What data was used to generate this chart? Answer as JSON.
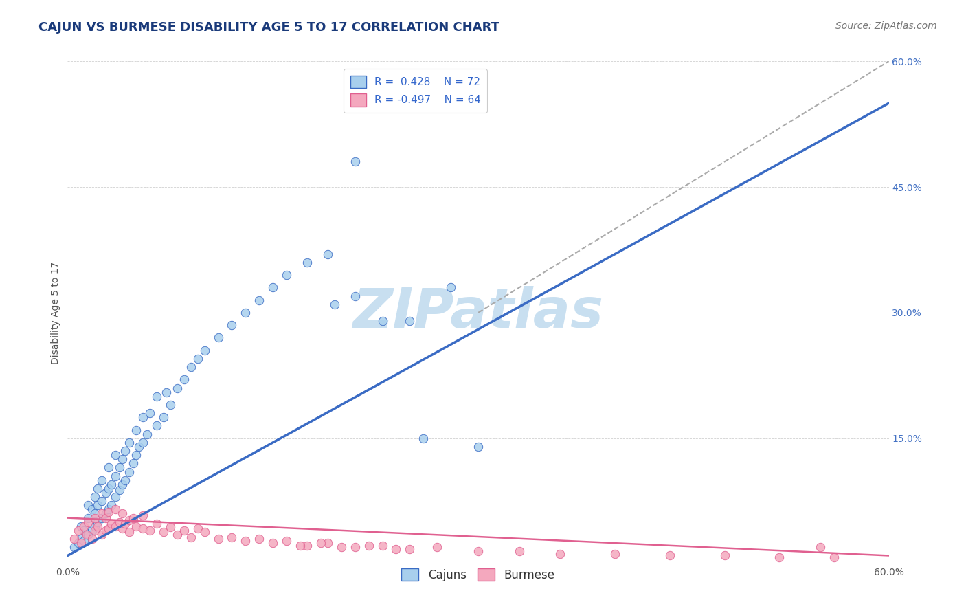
{
  "title": "CAJUN VS BURMESE DISABILITY AGE 5 TO 17 CORRELATION CHART",
  "source_text": "Source: ZipAtlas.com",
  "ylabel": "Disability Age 5 to 17",
  "xlim": [
    0.0,
    0.6
  ],
  "ylim": [
    0.0,
    0.6
  ],
  "cajun_R": 0.428,
  "cajun_N": 72,
  "burmese_R": -0.497,
  "burmese_N": 64,
  "cajun_color": "#A8CFED",
  "burmese_color": "#F4A8BE",
  "cajun_line_color": "#3A6BC4",
  "burmese_line_color": "#E06090",
  "trend_line_color": "#AAAAAA",
  "background_color": "#FFFFFF",
  "watermark_color": "#C8DFF0",
  "title_color": "#1A3A7A",
  "title_fontsize": 13,
  "axis_label_fontsize": 10,
  "legend_fontsize": 11,
  "source_fontsize": 10,
  "cajun_line_start_x": 0.0,
  "cajun_line_start_y": 0.01,
  "cajun_line_end_x": 0.6,
  "cajun_line_end_y": 0.55,
  "burmese_line_start_x": 0.0,
  "burmese_line_start_y": 0.055,
  "burmese_line_end_x": 0.6,
  "burmese_line_end_y": 0.01,
  "dash_line_start_x": 0.3,
  "dash_line_start_y": 0.3,
  "dash_line_end_x": 0.6,
  "dash_line_end_y": 0.6,
  "cajun_scatter_x": [
    0.005,
    0.008,
    0.01,
    0.01,
    0.012,
    0.012,
    0.015,
    0.015,
    0.015,
    0.018,
    0.018,
    0.02,
    0.02,
    0.02,
    0.022,
    0.022,
    0.022,
    0.025,
    0.025,
    0.025,
    0.028,
    0.028,
    0.03,
    0.03,
    0.03,
    0.032,
    0.032,
    0.035,
    0.035,
    0.035,
    0.038,
    0.038,
    0.04,
    0.04,
    0.042,
    0.042,
    0.045,
    0.045,
    0.048,
    0.05,
    0.05,
    0.052,
    0.055,
    0.055,
    0.058,
    0.06,
    0.065,
    0.065,
    0.07,
    0.072,
    0.075,
    0.08,
    0.085,
    0.09,
    0.095,
    0.1,
    0.11,
    0.12,
    0.13,
    0.14,
    0.15,
    0.16,
    0.175,
    0.19,
    0.21,
    0.23,
    0.26,
    0.3,
    0.195,
    0.21,
    0.25,
    0.28
  ],
  "cajun_scatter_y": [
    0.02,
    0.025,
    0.03,
    0.045,
    0.028,
    0.04,
    0.035,
    0.055,
    0.07,
    0.04,
    0.065,
    0.045,
    0.06,
    0.08,
    0.05,
    0.07,
    0.09,
    0.055,
    0.075,
    0.1,
    0.06,
    0.085,
    0.065,
    0.09,
    0.115,
    0.07,
    0.095,
    0.08,
    0.105,
    0.13,
    0.088,
    0.115,
    0.095,
    0.125,
    0.1,
    0.135,
    0.11,
    0.145,
    0.12,
    0.13,
    0.16,
    0.14,
    0.145,
    0.175,
    0.155,
    0.18,
    0.165,
    0.2,
    0.175,
    0.205,
    0.19,
    0.21,
    0.22,
    0.235,
    0.245,
    0.255,
    0.27,
    0.285,
    0.3,
    0.315,
    0.33,
    0.345,
    0.36,
    0.37,
    0.48,
    0.29,
    0.15,
    0.14,
    0.31,
    0.32,
    0.29,
    0.33
  ],
  "burmese_scatter_x": [
    0.005,
    0.008,
    0.01,
    0.012,
    0.014,
    0.015,
    0.018,
    0.02,
    0.02,
    0.022,
    0.025,
    0.025,
    0.028,
    0.028,
    0.03,
    0.03,
    0.032,
    0.035,
    0.035,
    0.038,
    0.04,
    0.04,
    0.042,
    0.045,
    0.045,
    0.048,
    0.05,
    0.055,
    0.055,
    0.06,
    0.065,
    0.07,
    0.075,
    0.08,
    0.085,
    0.09,
    0.095,
    0.1,
    0.11,
    0.12,
    0.13,
    0.14,
    0.15,
    0.16,
    0.175,
    0.19,
    0.21,
    0.23,
    0.25,
    0.27,
    0.3,
    0.33,
    0.36,
    0.4,
    0.44,
    0.48,
    0.52,
    0.55,
    0.17,
    0.185,
    0.2,
    0.22,
    0.24,
    0.56
  ],
  "burmese_scatter_y": [
    0.03,
    0.04,
    0.025,
    0.045,
    0.035,
    0.05,
    0.03,
    0.055,
    0.04,
    0.045,
    0.035,
    0.06,
    0.04,
    0.055,
    0.042,
    0.062,
    0.048,
    0.045,
    0.065,
    0.05,
    0.042,
    0.06,
    0.048,
    0.052,
    0.038,
    0.055,
    0.045,
    0.042,
    0.058,
    0.04,
    0.048,
    0.038,
    0.044,
    0.035,
    0.04,
    0.032,
    0.042,
    0.038,
    0.03,
    0.032,
    0.028,
    0.03,
    0.025,
    0.028,
    0.022,
    0.025,
    0.02,
    0.022,
    0.018,
    0.02,
    0.015,
    0.015,
    0.012,
    0.012,
    0.01,
    0.01,
    0.008,
    0.02,
    0.022,
    0.025,
    0.02,
    0.022,
    0.018,
    0.008
  ]
}
